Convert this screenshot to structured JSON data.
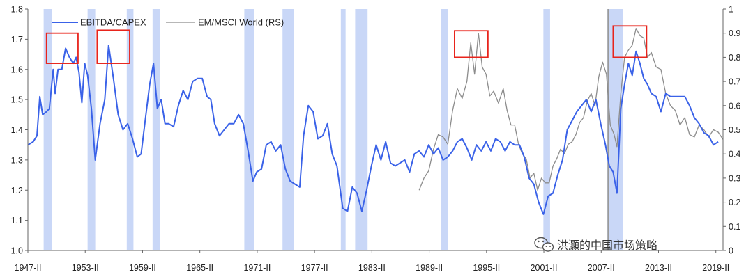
{
  "chart_data": {
    "type": "line",
    "x_categories": [
      "1947-II",
      "1953-II",
      "1959-II",
      "1965-II",
      "1971-II",
      "1977-II",
      "1983-II",
      "1989-II",
      "1995-II",
      "2001-II",
      "2007-II",
      "2013-II",
      "2019-II"
    ],
    "x_range": [
      1947.25,
      2020.0
    ],
    "ylim_left": [
      1.0,
      1.8
    ],
    "ylim_right": [
      0.0,
      1.0
    ],
    "yticks_left": [
      "1.0",
      "1.1",
      "1.2",
      "1.3",
      "1.4",
      "1.5",
      "1.6",
      "1.7",
      "1.8"
    ],
    "yticks_right": [
      "0",
      "0.1",
      "0.2",
      "0.3",
      "0.4",
      "0.5",
      "0.6",
      "0.7",
      "0.8",
      "0.9",
      "1"
    ],
    "grid": false,
    "legend_placement": "top-left",
    "colors": {
      "series_main": "#3a62e8",
      "series_right": "#8c8c8c",
      "recession": "#c9d7f7",
      "highlight_box": "#e8241c",
      "vline": "#9a9a9a"
    },
    "recessions": [
      [
        1948.9,
        1949.8
      ],
      [
        1953.5,
        1954.3
      ],
      [
        1957.6,
        1958.3
      ],
      [
        1960.3,
        1961.1
      ],
      [
        1969.9,
        1970.9
      ],
      [
        1973.9,
        1975.1
      ],
      [
        1980.0,
        1980.5
      ],
      [
        1981.5,
        1982.8
      ],
      [
        1990.5,
        1991.2
      ],
      [
        2001.2,
        2001.9
      ],
      [
        2007.9,
        2009.5
      ]
    ],
    "vline_x": 2008.0,
    "highlight_boxes": [
      {
        "x": [
          1949.2,
          1952.5
        ],
        "y": [
          1.62,
          1.72
        ],
        "axis": "left"
      },
      {
        "x": [
          1954.5,
          1957.9
        ],
        "y": [
          1.62,
          1.73
        ],
        "axis": "left"
      },
      {
        "x": [
          1991.9,
          1995.4
        ],
        "y": [
          0.8,
          0.91
        ],
        "axis": "right"
      },
      {
        "x": [
          2008.5,
          2012.0
        ],
        "y": [
          0.8,
          0.93
        ],
        "axis": "right"
      }
    ],
    "series": [
      {
        "name": "EBITDA/CAPEX",
        "axis": "left",
        "points": [
          [
            1947.25,
            1.35
          ],
          [
            1947.8,
            1.36
          ],
          [
            1948.2,
            1.38
          ],
          [
            1948.5,
            1.51
          ],
          [
            1948.8,
            1.45
          ],
          [
            1949.2,
            1.46
          ],
          [
            1949.5,
            1.47
          ],
          [
            1949.9,
            1.6
          ],
          [
            1950.1,
            1.52
          ],
          [
            1950.4,
            1.6
          ],
          [
            1950.8,
            1.6
          ],
          [
            1951.2,
            1.67
          ],
          [
            1951.6,
            1.64
          ],
          [
            1952.0,
            1.62
          ],
          [
            1952.3,
            1.64
          ],
          [
            1952.6,
            1.59
          ],
          [
            1952.9,
            1.49
          ],
          [
            1953.2,
            1.62
          ],
          [
            1953.5,
            1.58
          ],
          [
            1953.9,
            1.47
          ],
          [
            1954.3,
            1.3
          ],
          [
            1954.8,
            1.42
          ],
          [
            1955.3,
            1.5
          ],
          [
            1955.7,
            1.68
          ],
          [
            1956.2,
            1.57
          ],
          [
            1956.7,
            1.45
          ],
          [
            1957.2,
            1.4
          ],
          [
            1957.7,
            1.42
          ],
          [
            1958.2,
            1.37
          ],
          [
            1958.7,
            1.31
          ],
          [
            1959.1,
            1.32
          ],
          [
            1959.6,
            1.45
          ],
          [
            1960.0,
            1.55
          ],
          [
            1960.4,
            1.62
          ],
          [
            1960.8,
            1.47
          ],
          [
            1961.2,
            1.5
          ],
          [
            1961.6,
            1.42
          ],
          [
            1962.0,
            1.42
          ],
          [
            1962.5,
            1.41
          ],
          [
            1963.0,
            1.48
          ],
          [
            1963.5,
            1.53
          ],
          [
            1964.0,
            1.5
          ],
          [
            1964.5,
            1.56
          ],
          [
            1965.0,
            1.57
          ],
          [
            1965.5,
            1.57
          ],
          [
            1966.0,
            1.51
          ],
          [
            1966.4,
            1.5
          ],
          [
            1966.8,
            1.42
          ],
          [
            1967.3,
            1.38
          ],
          [
            1967.8,
            1.4
          ],
          [
            1968.3,
            1.42
          ],
          [
            1968.8,
            1.42
          ],
          [
            1969.3,
            1.45
          ],
          [
            1969.8,
            1.42
          ],
          [
            1970.3,
            1.33
          ],
          [
            1970.8,
            1.23
          ],
          [
            1971.2,
            1.26
          ],
          [
            1971.7,
            1.27
          ],
          [
            1972.2,
            1.35
          ],
          [
            1972.7,
            1.36
          ],
          [
            1973.2,
            1.33
          ],
          [
            1973.7,
            1.35
          ],
          [
            1974.2,
            1.27
          ],
          [
            1974.7,
            1.23
          ],
          [
            1975.2,
            1.22
          ],
          [
            1975.7,
            1.21
          ],
          [
            1976.1,
            1.38
          ],
          [
            1976.6,
            1.48
          ],
          [
            1977.1,
            1.46
          ],
          [
            1977.6,
            1.37
          ],
          [
            1978.1,
            1.38
          ],
          [
            1978.6,
            1.42
          ],
          [
            1979.1,
            1.32
          ],
          [
            1979.6,
            1.28
          ],
          [
            1980.2,
            1.14
          ],
          [
            1980.7,
            1.13
          ],
          [
            1981.2,
            1.21
          ],
          [
            1981.7,
            1.19
          ],
          [
            1982.2,
            1.13
          ],
          [
            1982.7,
            1.2
          ],
          [
            1983.2,
            1.28
          ],
          [
            1983.7,
            1.35
          ],
          [
            1984.2,
            1.3
          ],
          [
            1984.7,
            1.36
          ],
          [
            1985.2,
            1.29
          ],
          [
            1985.7,
            1.28
          ],
          [
            1986.2,
            1.29
          ],
          [
            1986.7,
            1.3
          ],
          [
            1987.2,
            1.26
          ],
          [
            1987.7,
            1.32
          ],
          [
            1988.2,
            1.33
          ],
          [
            1988.7,
            1.31
          ],
          [
            1989.2,
            1.35
          ],
          [
            1989.7,
            1.32
          ],
          [
            1990.2,
            1.34
          ],
          [
            1990.7,
            1.3
          ],
          [
            1991.2,
            1.31
          ],
          [
            1991.7,
            1.33
          ],
          [
            1992.2,
            1.36
          ],
          [
            1992.7,
            1.37
          ],
          [
            1993.2,
            1.34
          ],
          [
            1993.7,
            1.3
          ],
          [
            1994.2,
            1.35
          ],
          [
            1994.7,
            1.33
          ],
          [
            1995.2,
            1.36
          ],
          [
            1995.7,
            1.33
          ],
          [
            1996.2,
            1.37
          ],
          [
            1996.7,
            1.36
          ],
          [
            1997.2,
            1.33
          ],
          [
            1997.7,
            1.36
          ],
          [
            1998.2,
            1.35
          ],
          [
            1998.7,
            1.35
          ],
          [
            1999.2,
            1.31
          ],
          [
            1999.7,
            1.24
          ],
          [
            2000.2,
            1.22
          ],
          [
            2000.7,
            1.16
          ],
          [
            2001.2,
            1.12
          ],
          [
            2001.7,
            1.18
          ],
          [
            2002.2,
            1.19
          ],
          [
            2002.7,
            1.25
          ],
          [
            2003.2,
            1.3
          ],
          [
            2003.7,
            1.4
          ],
          [
            2004.2,
            1.43
          ],
          [
            2004.7,
            1.46
          ],
          [
            2005.2,
            1.48
          ],
          [
            2005.7,
            1.5
          ],
          [
            2006.2,
            1.46
          ],
          [
            2006.7,
            1.5
          ],
          [
            2007.2,
            1.42
          ],
          [
            2007.7,
            1.35
          ],
          [
            2008.1,
            1.28
          ],
          [
            2008.5,
            1.26
          ],
          [
            2008.9,
            1.19
          ],
          [
            2009.3,
            1.47
          ],
          [
            2009.7,
            1.55
          ],
          [
            2010.1,
            1.62
          ],
          [
            2010.5,
            1.58
          ],
          [
            2010.9,
            1.66
          ],
          [
            2011.3,
            1.62
          ],
          [
            2011.7,
            1.57
          ],
          [
            2012.1,
            1.55
          ],
          [
            2012.5,
            1.52
          ],
          [
            2013.0,
            1.51
          ],
          [
            2013.5,
            1.46
          ],
          [
            2014.0,
            1.52
          ],
          [
            2014.5,
            1.51
          ],
          [
            2015.0,
            1.51
          ],
          [
            2015.5,
            1.51
          ],
          [
            2016.0,
            1.51
          ],
          [
            2016.5,
            1.48
          ],
          [
            2017.0,
            1.44
          ],
          [
            2017.5,
            1.42
          ],
          [
            2018.0,
            1.39
          ],
          [
            2018.5,
            1.38
          ],
          [
            2019.0,
            1.35
          ],
          [
            2019.5,
            1.36
          ]
        ]
      },
      {
        "name": "EM/MSCI World (RS)",
        "axis": "right",
        "points": [
          [
            1988.2,
            0.25
          ],
          [
            1988.7,
            0.3
          ],
          [
            1989.2,
            0.33
          ],
          [
            1989.7,
            0.42
          ],
          [
            1990.2,
            0.48
          ],
          [
            1990.7,
            0.47
          ],
          [
            1991.2,
            0.44
          ],
          [
            1991.7,
            0.58
          ],
          [
            1992.2,
            0.67
          ],
          [
            1992.7,
            0.63
          ],
          [
            1993.2,
            0.7
          ],
          [
            1993.6,
            0.86
          ],
          [
            1994.0,
            0.73
          ],
          [
            1994.4,
            0.9
          ],
          [
            1994.8,
            0.76
          ],
          [
            1995.2,
            0.73
          ],
          [
            1995.6,
            0.64
          ],
          [
            1996.0,
            0.66
          ],
          [
            1996.5,
            0.61
          ],
          [
            1997.0,
            0.67
          ],
          [
            1997.4,
            0.58
          ],
          [
            1997.8,
            0.52
          ],
          [
            1998.2,
            0.52
          ],
          [
            1998.6,
            0.44
          ],
          [
            1999.0,
            0.4
          ],
          [
            1999.4,
            0.38
          ],
          [
            1999.8,
            0.3
          ],
          [
            2000.2,
            0.32
          ],
          [
            2000.6,
            0.25
          ],
          [
            2001.0,
            0.3
          ],
          [
            2001.4,
            0.28
          ],
          [
            2001.8,
            0.28
          ],
          [
            2002.2,
            0.35
          ],
          [
            2002.6,
            0.38
          ],
          [
            2003.0,
            0.42
          ],
          [
            2003.4,
            0.4
          ],
          [
            2003.8,
            0.44
          ],
          [
            2004.2,
            0.45
          ],
          [
            2004.6,
            0.48
          ],
          [
            2005.0,
            0.53
          ],
          [
            2005.4,
            0.55
          ],
          [
            2005.8,
            0.62
          ],
          [
            2006.2,
            0.65
          ],
          [
            2006.6,
            0.6
          ],
          [
            2007.0,
            0.72
          ],
          [
            2007.4,
            0.78
          ],
          [
            2007.8,
            0.73
          ],
          [
            2008.2,
            0.52
          ],
          [
            2008.6,
            0.48
          ],
          [
            2008.9,
            0.43
          ],
          [
            2009.3,
            0.65
          ],
          [
            2009.7,
            0.8
          ],
          [
            2010.1,
            0.83
          ],
          [
            2010.5,
            0.85
          ],
          [
            2010.9,
            0.92
          ],
          [
            2011.3,
            0.89
          ],
          [
            2011.7,
            0.88
          ],
          [
            2012.1,
            0.8
          ],
          [
            2012.5,
            0.82
          ],
          [
            2013.0,
            0.76
          ],
          [
            2013.5,
            0.75
          ],
          [
            2014.0,
            0.65
          ],
          [
            2014.5,
            0.6
          ],
          [
            2015.0,
            0.58
          ],
          [
            2015.5,
            0.52
          ],
          [
            2016.0,
            0.55
          ],
          [
            2016.5,
            0.48
          ],
          [
            2017.0,
            0.47
          ],
          [
            2017.5,
            0.52
          ],
          [
            2018.0,
            0.5
          ],
          [
            2018.5,
            0.47
          ],
          [
            2019.0,
            0.5
          ],
          [
            2019.5,
            0.49
          ],
          [
            2020.0,
            0.46
          ]
        ]
      }
    ]
  },
  "watermark": {
    "icon": "wechat-icon",
    "text": "洪灝的中国市场策略"
  }
}
